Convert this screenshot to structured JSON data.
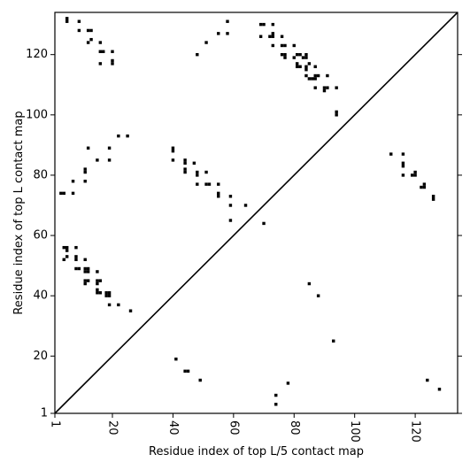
{
  "chart_data": {
    "type": "scatter",
    "title": "",
    "xlabel": "Residue index of top L/5 contact map",
    "ylabel": "Residue index of top L contact map",
    "xlim": [
      1,
      134
    ],
    "ylim": [
      1,
      134
    ],
    "x_ticks": [
      1,
      20,
      40,
      60,
      80,
      100,
      120
    ],
    "y_ticks": [
      1,
      20,
      40,
      60,
      80,
      100,
      120
    ],
    "x_tick_rotation": 90,
    "grid": false,
    "diagonal": true,
    "marker": "square",
    "marker_color": "#000000",
    "upper_triangle_points": [
      [
        5,
        132
      ],
      [
        5,
        131
      ],
      [
        9,
        131
      ],
      [
        9,
        128
      ],
      [
        12,
        128
      ],
      [
        13,
        128
      ],
      [
        13,
        125
      ],
      [
        12,
        124
      ],
      [
        16,
        124
      ],
      [
        16,
        121
      ],
      [
        17,
        121
      ],
      [
        20,
        121
      ],
      [
        16,
        117
      ],
      [
        20,
        118
      ],
      [
        20,
        117
      ],
      [
        48,
        120
      ],
      [
        51,
        124
      ],
      [
        55,
        127
      ],
      [
        58,
        127
      ],
      [
        58,
        131
      ],
      [
        69,
        130
      ],
      [
        70,
        130
      ],
      [
        73,
        130
      ],
      [
        69,
        126
      ],
      [
        72,
        126
      ],
      [
        73,
        127
      ],
      [
        73,
        126
      ],
      [
        76,
        126
      ],
      [
        73,
        123
      ],
      [
        76,
        123
      ],
      [
        77,
        123
      ],
      [
        80,
        123
      ],
      [
        76,
        120
      ],
      [
        77,
        120
      ],
      [
        77,
        119
      ],
      [
        80,
        119
      ],
      [
        81,
        120
      ],
      [
        82,
        120
      ],
      [
        83,
        119
      ],
      [
        84,
        120
      ],
      [
        84,
        119
      ],
      [
        81,
        117
      ],
      [
        81,
        116
      ],
      [
        82,
        116
      ],
      [
        84,
        116
      ],
      [
        84,
        115
      ],
      [
        85,
        117
      ],
      [
        87,
        116
      ],
      [
        84,
        113
      ],
      [
        85,
        112
      ],
      [
        86,
        112
      ],
      [
        87,
        113
      ],
      [
        88,
        113
      ],
      [
        87,
        112
      ],
      [
        91,
        113
      ],
      [
        87,
        109
      ],
      [
        90,
        109
      ],
      [
        90,
        108
      ],
      [
        91,
        109
      ],
      [
        94,
        109
      ],
      [
        94,
        101
      ],
      [
        94,
        100
      ],
      [
        12,
        89
      ],
      [
        19,
        89
      ],
      [
        22,
        93
      ],
      [
        25,
        93
      ],
      [
        40,
        89
      ],
      [
        40,
        88
      ],
      [
        40,
        85
      ],
      [
        44,
        85
      ],
      [
        44,
        84
      ],
      [
        44,
        82
      ],
      [
        44,
        81
      ],
      [
        47,
        84
      ],
      [
        48,
        81
      ],
      [
        48,
        80
      ],
      [
        51,
        81
      ],
      [
        48,
        77
      ],
      [
        51,
        77
      ],
      [
        52,
        77
      ],
      [
        55,
        77
      ],
      [
        55,
        74
      ],
      [
        55,
        73
      ],
      [
        59,
        73
      ],
      [
        59,
        70
      ],
      [
        64,
        70
      ],
      [
        59,
        65
      ],
      [
        70,
        64
      ],
      [
        3,
        74
      ],
      [
        4,
        74
      ],
      [
        7,
        74
      ],
      [
        7,
        78
      ],
      [
        11,
        78
      ],
      [
        11,
        81
      ],
      [
        11,
        82
      ],
      [
        15,
        85
      ],
      [
        19,
        85
      ],
      [
        4,
        56
      ],
      [
        5,
        56
      ],
      [
        5,
        55
      ],
      [
        8,
        56
      ],
      [
        8,
        53
      ],
      [
        8,
        52
      ],
      [
        4,
        52
      ],
      [
        5,
        53
      ],
      [
        11,
        52
      ],
      [
        8,
        49
      ],
      [
        9,
        49
      ],
      [
        11,
        49
      ],
      [
        12,
        49
      ],
      [
        11,
        48
      ],
      [
        12,
        48
      ],
      [
        15,
        48
      ],
      [
        11,
        45
      ],
      [
        12,
        45
      ],
      [
        11,
        44
      ],
      [
        15,
        45
      ],
      [
        16,
        45
      ],
      [
        15,
        44
      ],
      [
        15,
        42
      ],
      [
        15,
        41
      ],
      [
        16,
        41
      ],
      [
        18,
        41
      ],
      [
        19,
        41
      ],
      [
        18,
        40
      ],
      [
        19,
        40
      ],
      [
        19,
        37
      ],
      [
        22,
        37
      ],
      [
        26,
        35
      ],
      [
        112,
        87
      ],
      [
        116,
        87
      ],
      [
        116,
        84
      ],
      [
        116,
        83
      ],
      [
        116,
        80
      ],
      [
        119,
        80
      ],
      [
        120,
        81
      ],
      [
        120,
        80
      ],
      [
        122,
        76
      ],
      [
        123,
        77
      ],
      [
        123,
        76
      ],
      [
        126,
        73
      ],
      [
        126,
        72
      ]
    ],
    "lower_triangle_points": [
      [
        85,
        44
      ],
      [
        88,
        40
      ],
      [
        93,
        25
      ],
      [
        41,
        19
      ],
      [
        44,
        15
      ],
      [
        45,
        15
      ],
      [
        49,
        12
      ],
      [
        78,
        11
      ],
      [
        124,
        12
      ],
      [
        128,
        9
      ],
      [
        74,
        7
      ],
      [
        74,
        4
      ]
    ]
  }
}
